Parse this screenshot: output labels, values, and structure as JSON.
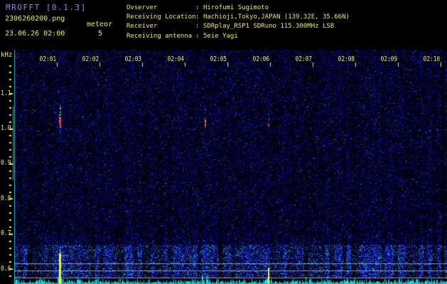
{
  "header": {
    "title": "MROFFT [0.1.3]",
    "filename": "2306260200.png",
    "datetime": "23.06.26 02:00",
    "meteor_label": "meteor",
    "meteor_count": "5"
  },
  "info": {
    "rows": [
      {
        "label": "Ovserver",
        "sep": ":",
        "value": "Hirofumi Sugimoto"
      },
      {
        "label": "Receiving Location",
        "sep": ":",
        "value": "Hachioji,Tokyo,JAPAN (139.32E, 35.66N)"
      },
      {
        "label": "Receiver",
        "sep": ":",
        "value": "SDRplay_RSP1 SDRuno 115.300MHz LSB"
      },
      {
        "label": "Receiving antenna",
        "sep": ":",
        "value": "5eie Yagi"
      }
    ]
  },
  "colors": {
    "background": "#000000",
    "text_yellow": "#eded4a",
    "title_blue": "#8c8cf2",
    "grid_gray": "#9a9a9a",
    "edge_cyan": "#00c8d2",
    "amplitude_cyan": "#00d5e8",
    "burst_yellow": "#f2ef3a",
    "echo_core_red": "#f0252c",
    "echo_orange": "#ff7a1e",
    "echo_green": "#35d34a",
    "echo_magenta": "#ff5f9e",
    "noise_blue": "#0000a0",
    "noise_cyan": "#0f9cc0",
    "noise_green": "#18c060"
  },
  "chart_data": {
    "type": "heatmap",
    "subtype": "radio-meteor-spectrogram",
    "title": "",
    "grid": false,
    "legend_position": "none",
    "x_axis": {
      "unit": "time",
      "start": "02:00",
      "end": "02:10",
      "tick_interval_min": 1,
      "tick_labels": [
        "02:01",
        "02:02",
        "02:03",
        "02:04",
        "02:05",
        "02:06",
        "02:07",
        "02:08",
        "02:09",
        "02:10"
      ]
    },
    "y_axis": {
      "unit": "kHz",
      "tick_labels": [
        "1.1",
        "1.0",
        "0.9",
        "0.8",
        "0.7",
        "0.6"
      ],
      "minor_tick_khz": 0.02,
      "range_khz": [
        0.555,
        1.225
      ]
    },
    "meteor_count": 5,
    "events": [
      {
        "time": "02:01:04",
        "x_min": 1.07,
        "core_khz": 1.02,
        "span_khz": [
          0.98,
          1.065
        ],
        "strength": "strong",
        "burst": true,
        "burst_top_khz": 0.642
      },
      {
        "time": "02:04:29",
        "x_min": 4.47,
        "core_khz": 1.015,
        "span_khz": [
          0.985,
          1.055
        ],
        "strength": "medium",
        "burst": false,
        "burst_top_khz": null
      },
      {
        "time": "02:05:57",
        "x_min": 5.95,
        "core_khz": 1.012,
        "span_khz": [
          0.98,
          1.045
        ],
        "strength": "weak",
        "burst": true,
        "burst_top_khz": 0.602
      }
    ],
    "noise_band_khz": [
      0.555,
      0.67
    ],
    "reference_lines_khz": [
      0.614,
      0.594,
      0.574
    ]
  }
}
